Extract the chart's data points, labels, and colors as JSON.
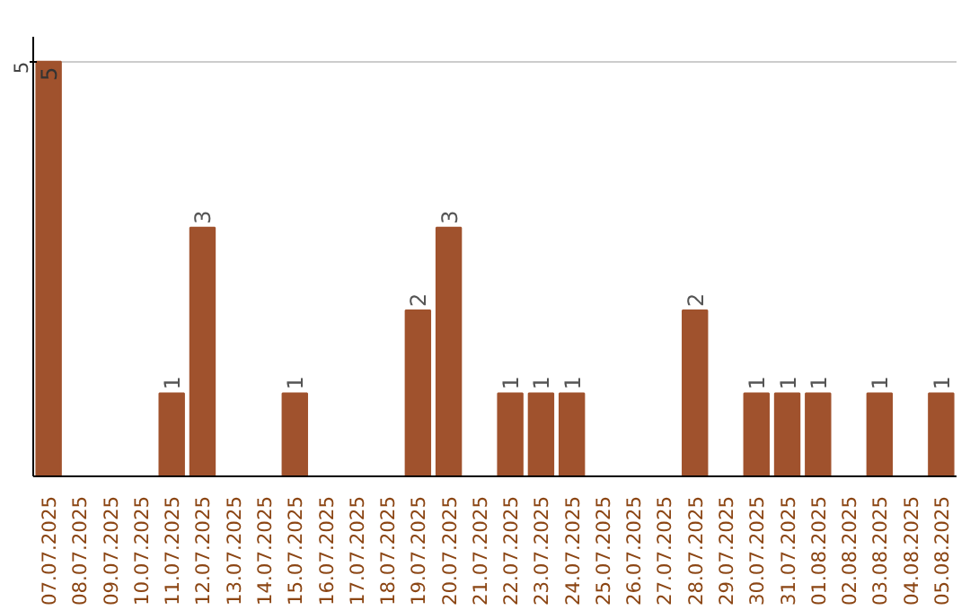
{
  "chart_data": {
    "type": "bar",
    "categories": [
      "07.07.2025",
      "08.07.2025",
      "09.07.2025",
      "10.07.2025",
      "11.07.2025",
      "12.07.2025",
      "13.07.2025",
      "14.07.2025",
      "15.07.2025",
      "16.07.2025",
      "17.07.2025",
      "18.07.2025",
      "19.07.2025",
      "20.07.2025",
      "21.07.2025",
      "22.07.2025",
      "23.07.2025",
      "24.07.2025",
      "25.07.2025",
      "26.07.2025",
      "27.07.2025",
      "28.07.2025",
      "29.07.2025",
      "30.07.2025",
      "31.07.2025",
      "01.08.2025",
      "02.08.2025",
      "03.08.2025",
      "04.08.2025",
      "05.08.2025"
    ],
    "values": [
      5,
      0,
      0,
      0,
      1,
      3,
      0,
      0,
      1,
      0,
      0,
      0,
      2,
      3,
      0,
      1,
      1,
      1,
      0,
      0,
      0,
      2,
      0,
      1,
      1,
      1,
      0,
      1,
      0,
      1
    ],
    "value_labels": [
      "5",
      null,
      null,
      null,
      "1",
      "3",
      null,
      null,
      "1",
      null,
      null,
      null,
      "2",
      "3",
      null,
      "1",
      "1",
      "1",
      null,
      null,
      null,
      "2",
      null,
      "1",
      "1",
      "1",
      null,
      "1",
      null,
      "1"
    ],
    "color": "#a0522d",
    "ylim": [
      0,
      5.3
    ],
    "yticks": [
      5
    ],
    "grid": "y"
  }
}
